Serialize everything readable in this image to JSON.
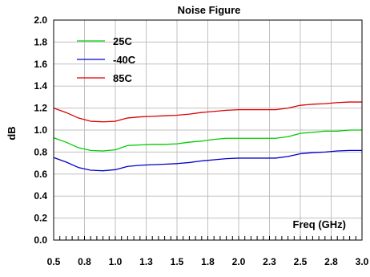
{
  "chart_data": {
    "type": "line",
    "title": "Noise Figure",
    "xlabel": "Freq (GHz)",
    "ylabel": "dB",
    "xlim": [
      0.5,
      3.0
    ],
    "ylim": [
      0.0,
      2.0
    ],
    "grid": true,
    "legend_position": "top-left",
    "x_tick_labels": [
      "0.5",
      "0.8",
      "1.0",
      "1.3",
      "1.5",
      "1.8",
      "2.0",
      "2.3",
      "2.5",
      "2.8",
      "3.0"
    ],
    "y_tick_labels": [
      "0.0",
      "0.2",
      "0.4",
      "0.6",
      "0.8",
      "1.0",
      "1.2",
      "1.4",
      "1.6",
      "1.8",
      "2.0"
    ],
    "series": [
      {
        "name": "25C",
        "color": "#00cc00",
        "x": [
          0.5,
          0.6,
          0.7,
          0.8,
          0.9,
          1.0,
          1.1,
          1.2,
          1.3,
          1.4,
          1.5,
          1.6,
          1.7,
          1.8,
          1.9,
          2.0,
          2.1,
          2.2,
          2.3,
          2.4,
          2.5,
          2.6,
          2.7,
          2.8,
          2.9,
          3.0
        ],
        "values": [
          0.93,
          0.89,
          0.84,
          0.815,
          0.81,
          0.82,
          0.86,
          0.865,
          0.87,
          0.87,
          0.875,
          0.89,
          0.9,
          0.915,
          0.925,
          0.925,
          0.925,
          0.925,
          0.925,
          0.94,
          0.97,
          0.98,
          0.99,
          0.99,
          1.0,
          1.0
        ]
      },
      {
        "name": "-40C",
        "color": "#0000cc",
        "x": [
          0.5,
          0.6,
          0.7,
          0.8,
          0.9,
          1.0,
          1.1,
          1.2,
          1.3,
          1.4,
          1.5,
          1.6,
          1.7,
          1.8,
          1.9,
          2.0,
          2.1,
          2.2,
          2.3,
          2.4,
          2.5,
          2.6,
          2.7,
          2.8,
          2.9,
          3.0
        ],
        "values": [
          0.75,
          0.71,
          0.66,
          0.635,
          0.63,
          0.64,
          0.67,
          0.68,
          0.685,
          0.69,
          0.695,
          0.705,
          0.72,
          0.73,
          0.74,
          0.745,
          0.745,
          0.745,
          0.745,
          0.76,
          0.785,
          0.795,
          0.8,
          0.81,
          0.815,
          0.815
        ]
      },
      {
        "name": "85C",
        "color": "#dd0000",
        "x": [
          0.5,
          0.6,
          0.7,
          0.8,
          0.9,
          1.0,
          1.1,
          1.2,
          1.3,
          1.4,
          1.5,
          1.6,
          1.7,
          1.8,
          1.9,
          2.0,
          2.1,
          2.2,
          2.3,
          2.4,
          2.5,
          2.6,
          2.7,
          2.8,
          2.9,
          3.0
        ],
        "values": [
          1.2,
          1.16,
          1.11,
          1.08,
          1.075,
          1.08,
          1.11,
          1.12,
          1.125,
          1.13,
          1.135,
          1.145,
          1.16,
          1.17,
          1.18,
          1.185,
          1.185,
          1.185,
          1.185,
          1.2,
          1.225,
          1.235,
          1.24,
          1.25,
          1.255,
          1.255
        ]
      }
    ]
  }
}
